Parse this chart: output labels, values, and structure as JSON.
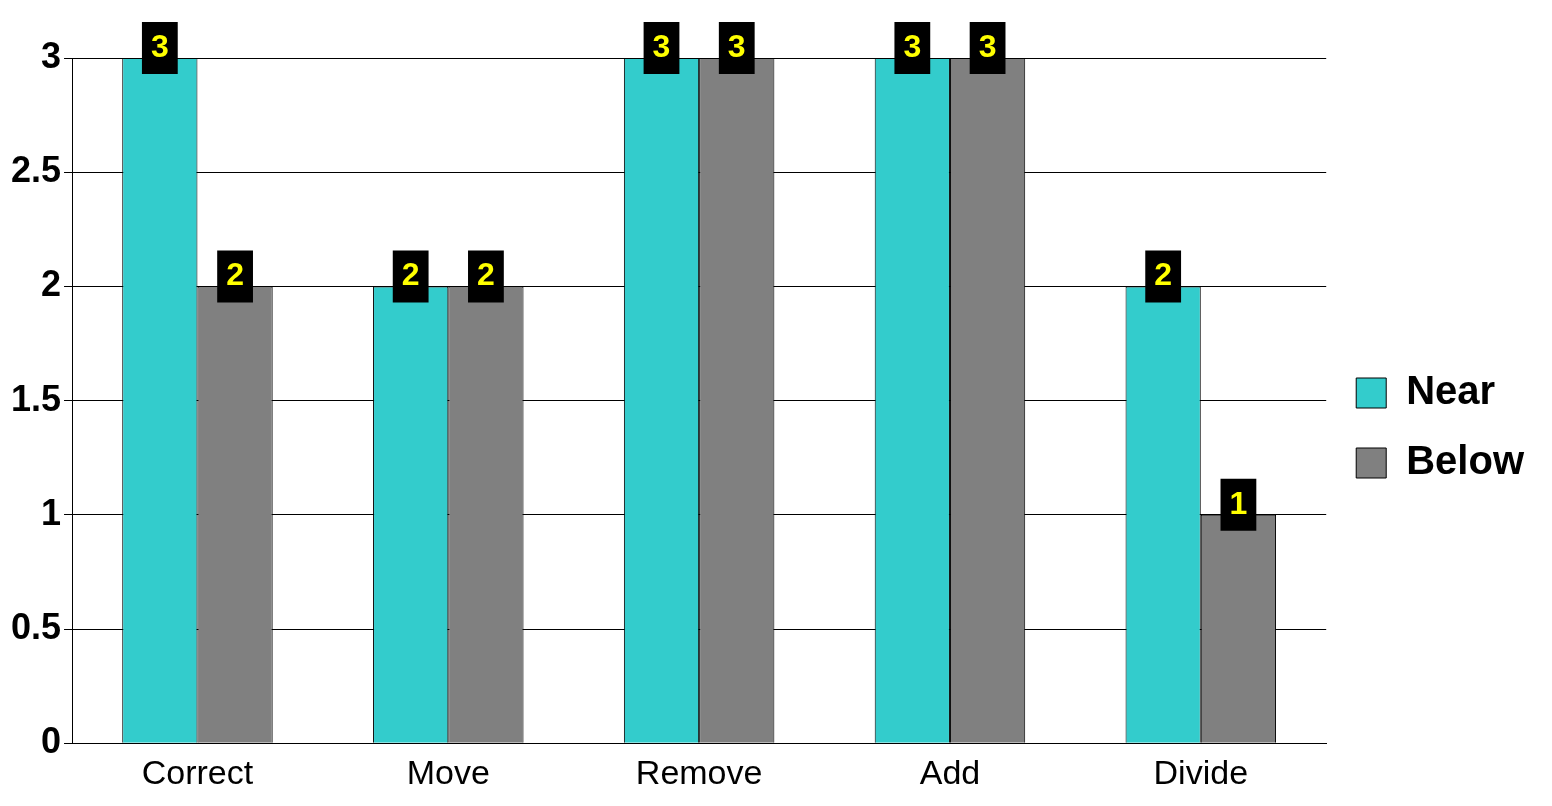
{
  "chart_data": {
    "type": "bar",
    "categories": [
      "Correct",
      "Move",
      "Remove",
      "Add",
      "Divide"
    ],
    "series": [
      {
        "name": "Near",
        "color": "#33cccc",
        "values": [
          3,
          2,
          3,
          3,
          2
        ]
      },
      {
        "name": "Below",
        "color": "#808080",
        "values": [
          2,
          2,
          3,
          3,
          1
        ]
      }
    ],
    "ylim": [
      0,
      3
    ],
    "yticks": [
      0,
      0.5,
      1,
      1.5,
      2,
      2.5,
      3
    ],
    "grid": "y",
    "legend": "right",
    "data_labels": true
  }
}
